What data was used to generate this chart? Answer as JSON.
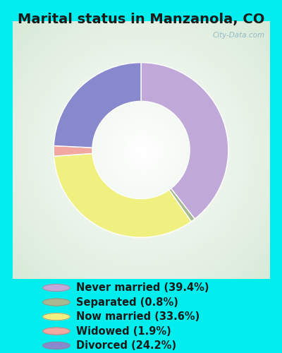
{
  "title": "Marital status in Manzanola, CO",
  "background_color": "#00EEEE",
  "chart_bg_gradient_colors": [
    "#c8e8c8",
    "#e8f4e8",
    "#f4faf4",
    "#ffffff"
  ],
  "categories": [
    "Never married",
    "Separated",
    "Now married",
    "Widowed",
    "Divorced"
  ],
  "values": [
    39.4,
    0.8,
    33.6,
    1.9,
    24.2
  ],
  "colors": [
    "#c0a8d8",
    "#a8b890",
    "#f0f080",
    "#f0a8a0",
    "#8888cc"
  ],
  "legend_labels": [
    "Never married (39.4%)",
    "Separated (0.8%)",
    "Now married (33.6%)",
    "Widowed (1.9%)",
    "Divorced (24.2%)"
  ],
  "legend_colors": [
    "#c0a8d8",
    "#a8b890",
    "#f0f080",
    "#f0a8a0",
    "#8888cc"
  ],
  "watermark": "City-Data.com",
  "title_fontsize": 14,
  "legend_fontsize": 10.5
}
